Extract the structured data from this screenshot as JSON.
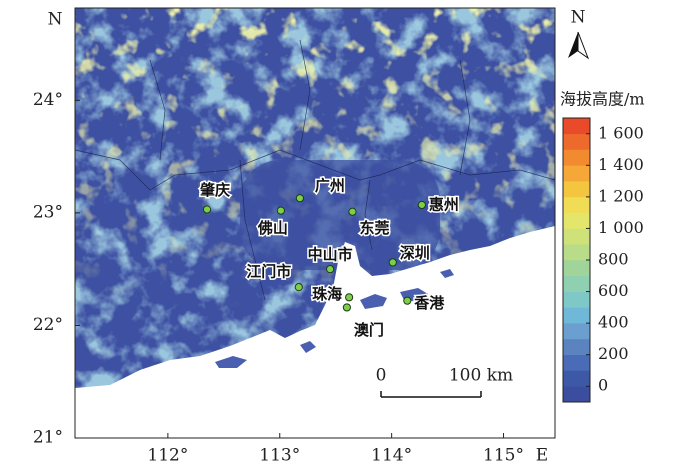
{
  "map": {
    "axes": {
      "lat_label": "N",
      "lon_label": "E",
      "lonlim": [
        111.17,
        115.46
      ],
      "latlim": [
        21,
        24.82
      ],
      "lat_ticks": [
        {
          "value": 21,
          "label": "21°"
        },
        {
          "value": 22,
          "label": "22°"
        },
        {
          "value": 23,
          "label": "23°"
        },
        {
          "value": 24,
          "label": "24°"
        }
      ],
      "lon_ticks": [
        {
          "value": 112,
          "label": "112°"
        },
        {
          "value": 113,
          "label": "113°"
        },
        {
          "value": 114,
          "label": "114°"
        },
        {
          "value": 115,
          "label": "115°"
        }
      ]
    },
    "cities": [
      {
        "name": "肇庆",
        "lon": 112.35,
        "lat": 23.03
      },
      {
        "name": "广州",
        "lon": 113.18,
        "lat": 23.13
      },
      {
        "name": "佛山",
        "lon": 113.01,
        "lat": 23.02
      },
      {
        "name": "东莞",
        "lon": 113.65,
        "lat": 23.01
      },
      {
        "name": "惠州",
        "lon": 114.27,
        "lat": 23.07
      },
      {
        "name": "中山市",
        "lon": 113.45,
        "lat": 22.5
      },
      {
        "name": "深圳",
        "lon": 114.01,
        "lat": 22.56
      },
      {
        "name": "江门市",
        "lon": 113.17,
        "lat": 22.34
      },
      {
        "name": "珠海",
        "lon": 113.62,
        "lat": 22.25
      },
      {
        "name": "香港",
        "lon": 114.14,
        "lat": 22.22
      },
      {
        "name": "澳门",
        "lon": 113.6,
        "lat": 22.16
      }
    ],
    "legend": {
      "title": "海拔高度/m",
      "lim": [
        -100,
        1700
      ],
      "colors": [
        "#3a4d9e",
        "#3e58a8",
        "#4a6bb5",
        "#5a83c0",
        "#6a9fd0",
        "#6fb8d8",
        "#7fc8c8",
        "#8fd0b0",
        "#a0d49a",
        "#b8dc88",
        "#cfe27a",
        "#e4e56b",
        "#f0dc55",
        "#f4c640",
        "#f5a838",
        "#f28a30",
        "#ee6a2c",
        "#e84a2a"
      ],
      "ticks": [
        0,
        200,
        400,
        600,
        800,
        {
          "value": 1000,
          "label": "1 000"
        },
        {
          "value": 1200,
          "label": "1 200"
        },
        {
          "value": 1400,
          "label": "1 400"
        },
        {
          "value": 1600,
          "label": "1 600"
        }
      ]
    },
    "scale_bar": {
      "ticks": [
        0,
        {
          "value": 100,
          "label": "100 km"
        }
      ]
    },
    "north_arrow": "N"
  }
}
